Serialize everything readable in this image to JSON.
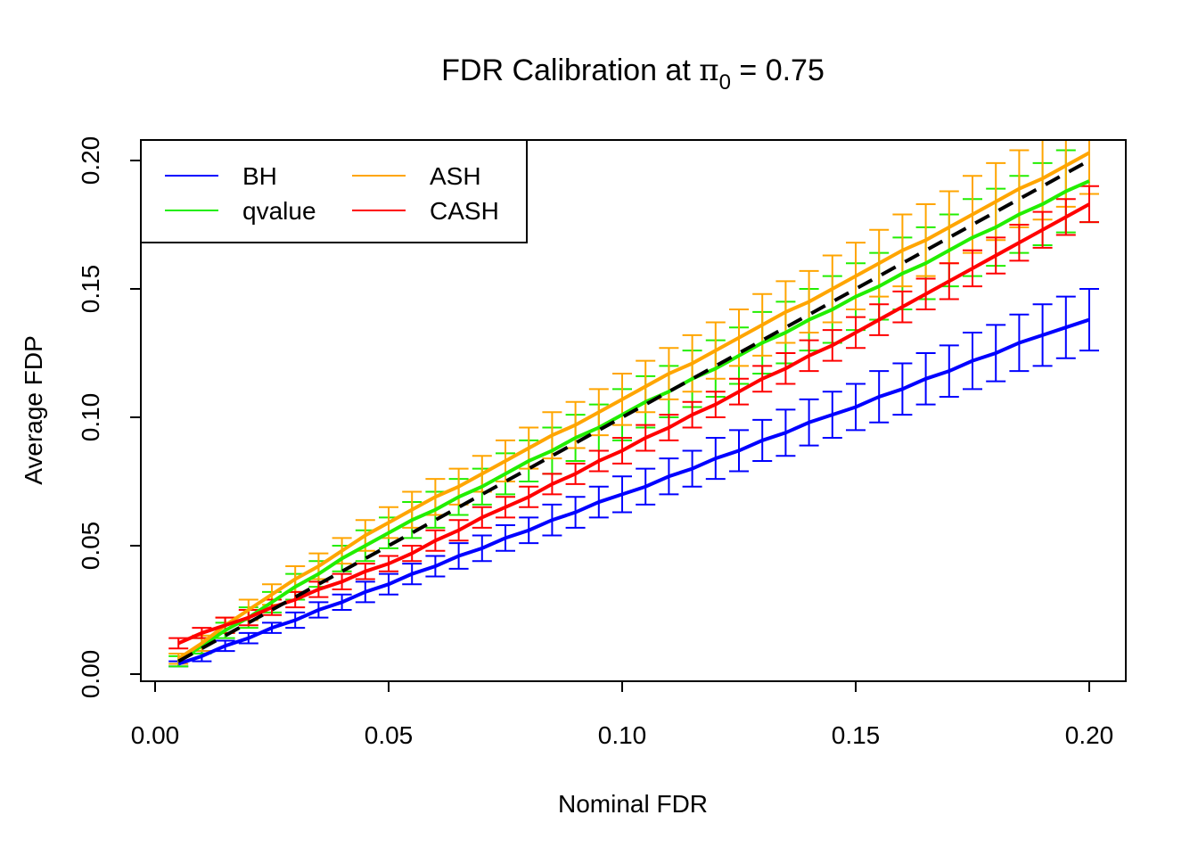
{
  "chart_data": {
    "type": "line",
    "title": {
      "main": "FDR Calibration at ",
      "symbol": "π",
      "subscript": "0",
      "suffix": " = 0.75"
    },
    "xlabel": "Nominal FDR",
    "ylabel": "Average FDP",
    "xlim": [
      0,
      0.2
    ],
    "ylim": [
      0,
      0.2
    ],
    "xticks": [
      "0.00",
      "0.05",
      "0.10",
      "0.15",
      "0.20"
    ],
    "yticks": [
      "0.00",
      "0.05",
      "0.10",
      "0.15",
      "0.20"
    ],
    "grid": false,
    "legend_placement": "top-left",
    "x": [
      0.005,
      0.01,
      0.015,
      0.02,
      0.025,
      0.03,
      0.035,
      0.04,
      0.045,
      0.05,
      0.055,
      0.06,
      0.065,
      0.07,
      0.075,
      0.08,
      0.085,
      0.09,
      0.095,
      0.1,
      0.105,
      0.11,
      0.115,
      0.12,
      0.125,
      0.13,
      0.135,
      0.14,
      0.145,
      0.15,
      0.155,
      0.16,
      0.165,
      0.17,
      0.175,
      0.18,
      0.185,
      0.19,
      0.195,
      0.2
    ],
    "reference_line": {
      "style": "dashed",
      "color": "#000000",
      "equation": "y = x"
    },
    "series": [
      {
        "name": "BH",
        "color": "#0000FF",
        "values": [
          0.004,
          0.007,
          0.011,
          0.014,
          0.018,
          0.021,
          0.025,
          0.028,
          0.032,
          0.035,
          0.039,
          0.042,
          0.046,
          0.049,
          0.053,
          0.056,
          0.06,
          0.063,
          0.067,
          0.07,
          0.073,
          0.077,
          0.08,
          0.084,
          0.087,
          0.091,
          0.094,
          0.098,
          0.101,
          0.104,
          0.108,
          0.111,
          0.115,
          0.118,
          0.122,
          0.125,
          0.129,
          0.132,
          0.135,
          0.138
        ],
        "error": [
          0.001,
          0.002,
          0.002,
          0.002,
          0.002,
          0.003,
          0.003,
          0.003,
          0.004,
          0.004,
          0.004,
          0.004,
          0.005,
          0.005,
          0.005,
          0.005,
          0.006,
          0.006,
          0.006,
          0.007,
          0.007,
          0.007,
          0.007,
          0.008,
          0.008,
          0.008,
          0.009,
          0.009,
          0.009,
          0.009,
          0.01,
          0.01,
          0.01,
          0.01,
          0.011,
          0.011,
          0.011,
          0.012,
          0.012,
          0.012
        ]
      },
      {
        "name": "qvalue",
        "color": "#22EE00",
        "values": [
          0.005,
          0.011,
          0.017,
          0.022,
          0.028,
          0.034,
          0.039,
          0.045,
          0.05,
          0.055,
          0.06,
          0.064,
          0.069,
          0.073,
          0.078,
          0.083,
          0.087,
          0.092,
          0.096,
          0.101,
          0.106,
          0.11,
          0.115,
          0.119,
          0.124,
          0.129,
          0.133,
          0.138,
          0.142,
          0.147,
          0.151,
          0.156,
          0.16,
          0.165,
          0.17,
          0.174,
          0.179,
          0.183,
          0.188,
          0.192
        ],
        "error": [
          0.002,
          0.003,
          0.003,
          0.004,
          0.004,
          0.005,
          0.005,
          0.005,
          0.006,
          0.006,
          0.007,
          0.007,
          0.007,
          0.007,
          0.008,
          0.008,
          0.009,
          0.009,
          0.009,
          0.01,
          0.01,
          0.01,
          0.011,
          0.011,
          0.011,
          0.012,
          0.012,
          0.012,
          0.013,
          0.013,
          0.013,
          0.014,
          0.014,
          0.014,
          0.015,
          0.015,
          0.015,
          0.016,
          0.016,
          0.016
        ]
      },
      {
        "name": "ASH",
        "color": "#FFA500",
        "values": [
          0.006,
          0.012,
          0.019,
          0.025,
          0.031,
          0.037,
          0.042,
          0.048,
          0.054,
          0.059,
          0.064,
          0.069,
          0.073,
          0.078,
          0.083,
          0.088,
          0.093,
          0.097,
          0.102,
          0.107,
          0.112,
          0.117,
          0.121,
          0.126,
          0.131,
          0.136,
          0.141,
          0.145,
          0.15,
          0.155,
          0.16,
          0.165,
          0.169,
          0.174,
          0.179,
          0.184,
          0.189,
          0.193,
          0.198,
          0.203
        ],
        "error": [
          0.002,
          0.003,
          0.003,
          0.004,
          0.004,
          0.005,
          0.005,
          0.005,
          0.006,
          0.006,
          0.007,
          0.007,
          0.007,
          0.007,
          0.008,
          0.008,
          0.009,
          0.009,
          0.009,
          0.01,
          0.01,
          0.01,
          0.011,
          0.011,
          0.011,
          0.012,
          0.012,
          0.012,
          0.013,
          0.013,
          0.013,
          0.014,
          0.014,
          0.014,
          0.015,
          0.015,
          0.015,
          0.016,
          0.016,
          0.016
        ]
      },
      {
        "name": "CASH",
        "color": "#FF0000",
        "values": [
          0.012,
          0.016,
          0.019,
          0.022,
          0.026,
          0.029,
          0.033,
          0.036,
          0.04,
          0.043,
          0.047,
          0.052,
          0.056,
          0.061,
          0.065,
          0.069,
          0.074,
          0.078,
          0.083,
          0.087,
          0.092,
          0.096,
          0.101,
          0.105,
          0.11,
          0.115,
          0.119,
          0.124,
          0.128,
          0.133,
          0.138,
          0.143,
          0.148,
          0.153,
          0.158,
          0.163,
          0.168,
          0.173,
          0.178,
          0.183
        ],
        "error": [
          0.002,
          0.002,
          0.003,
          0.003,
          0.003,
          0.003,
          0.003,
          0.003,
          0.003,
          0.003,
          0.003,
          0.004,
          0.004,
          0.004,
          0.004,
          0.004,
          0.004,
          0.004,
          0.004,
          0.005,
          0.005,
          0.005,
          0.005,
          0.005,
          0.005,
          0.005,
          0.006,
          0.006,
          0.006,
          0.006,
          0.006,
          0.006,
          0.006,
          0.007,
          0.007,
          0.007,
          0.007,
          0.007,
          0.007,
          0.007
        ]
      }
    ]
  }
}
